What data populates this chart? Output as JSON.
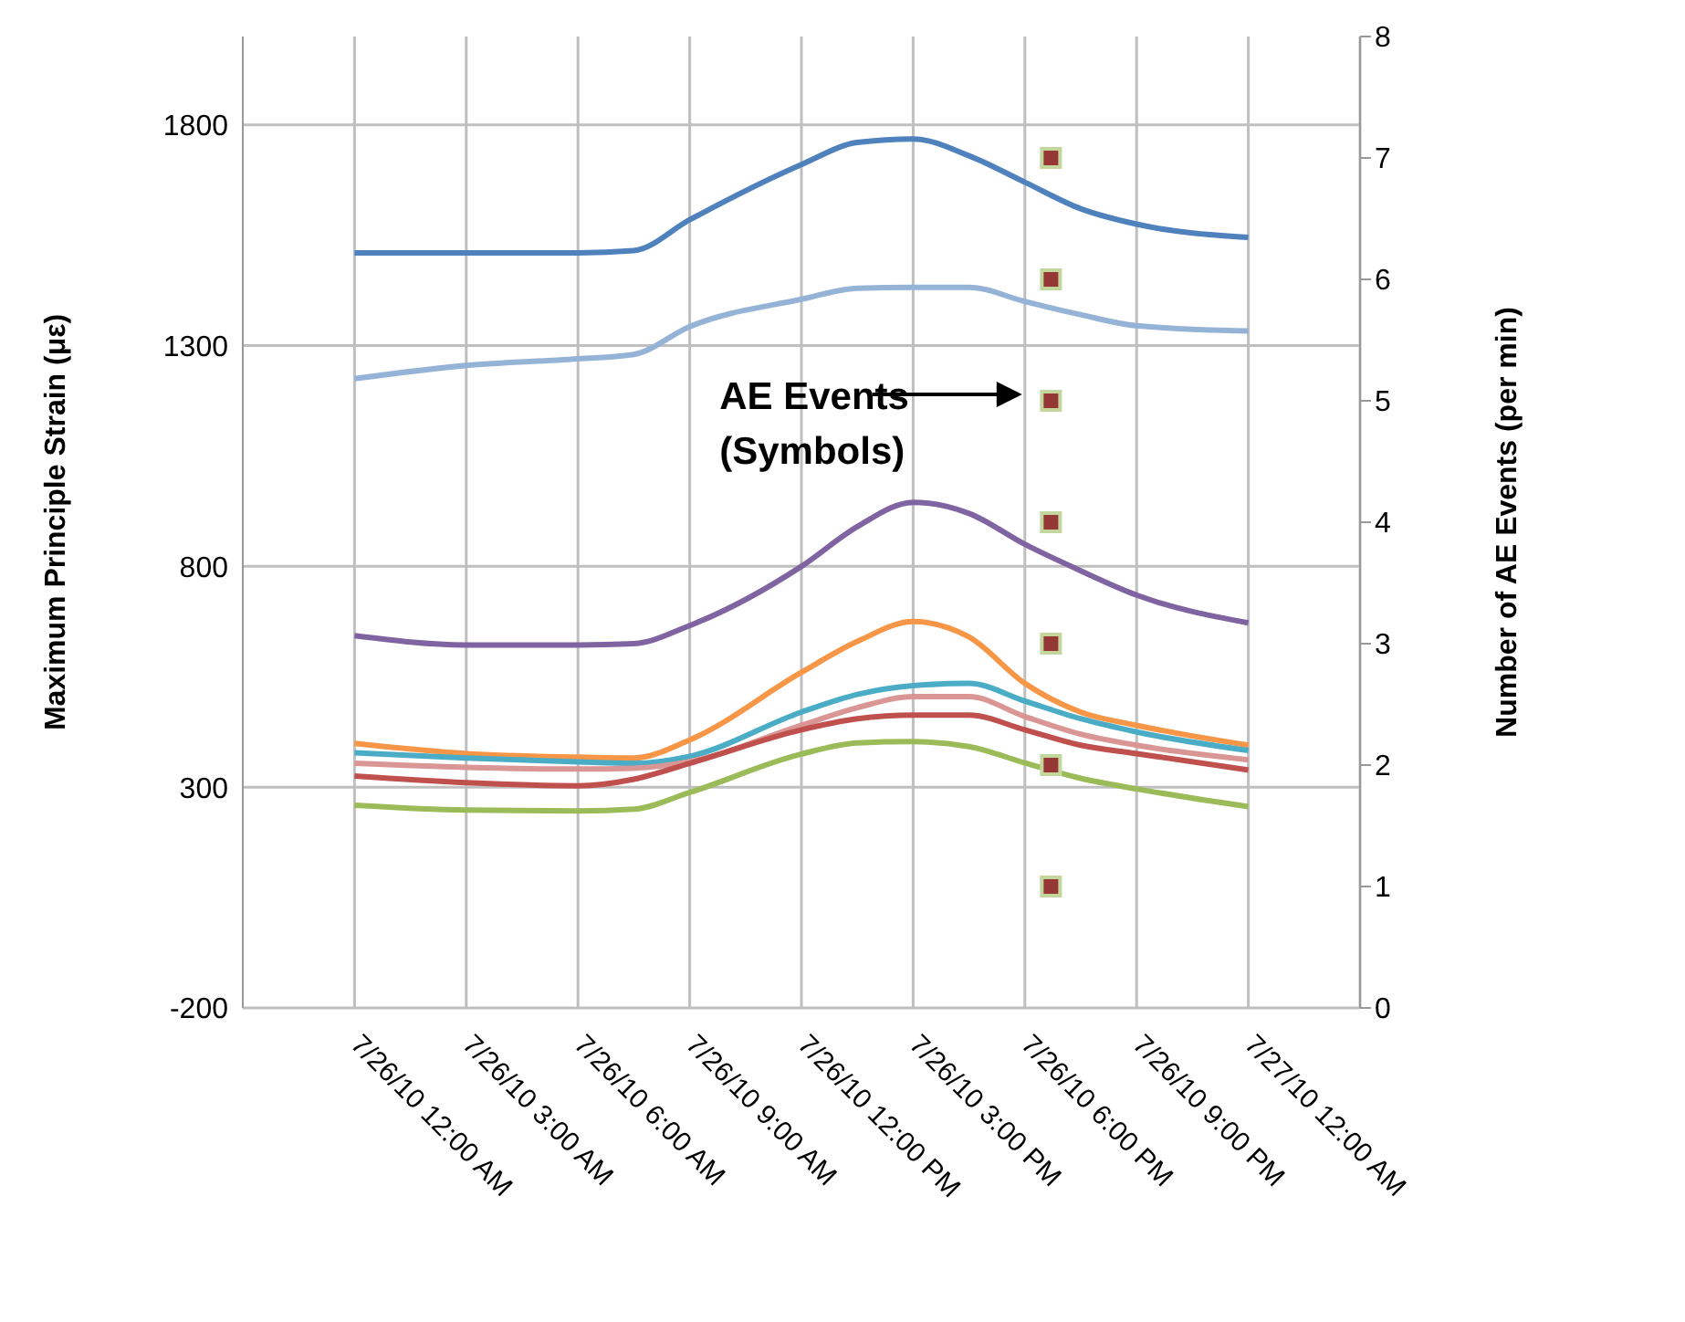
{
  "chart_data": {
    "type": "line",
    "ylabel": "Maximum Principle Strain (με)",
    "y2label": "Number of AE Events (per min)",
    "annotations": [
      "AE Events\n(Symbols)"
    ],
    "x": [
      "--07-26T00:00",
      "--07-26T03:00",
      "--07-26T06:00",
      "--07-26T07:30",
      "--07-26T09:00",
      "--07-26T12:00",
      "--07-26T13:30",
      "--07-26T15:00",
      "--07-26T16:30",
      "--07-26T18:00",
      "--07-26T19:30",
      "--07-26T21:00",
      "--07-27T00:00"
    ],
    "xlim": [
      "--07-25T21:00",
      "--07-27T03:00"
    ],
    "xticks": [
      {
        "value": "--07-26T00:00",
        "label": "7/26/10 12:00 AM"
      },
      {
        "value": "--07-26T03:00",
        "label": "7/26/10 3:00 AM"
      },
      {
        "value": "--07-26T06:00",
        "label": "7/26/10 6:00 AM"
      },
      {
        "value": "--07-26T09:00",
        "label": "7/26/10 9:00 AM"
      },
      {
        "value": "--07-26T12:00",
        "label": "7/26/10 12:00 PM"
      },
      {
        "value": "--07-26T15:00",
        "label": "7/26/10 3:00 PM"
      },
      {
        "value": "--07-26T18:00",
        "label": "7/26/10 6:00 PM"
      },
      {
        "value": "--07-26T21:00",
        "label": "7/26/10 9:00 PM"
      },
      {
        "value": "--07-27T00:00",
        "label": "7/27/10 12:00 AM"
      }
    ],
    "ylim": [
      -200,
      2000
    ],
    "yticks": [
      -200,
      300,
      800,
      1300,
      1800
    ],
    "y2lim": [
      0,
      8
    ],
    "y2ticks": [
      0,
      1,
      2,
      3,
      4,
      5,
      6,
      7,
      8
    ],
    "grid": true,
    "marker": "none",
    "line_style": "solid",
    "series": [
      {
        "color": "#4f81bd",
        "values": [
          1510,
          1510,
          1510,
          1515,
          1585,
          1710,
          1760,
          1768,
          1730,
          1670,
          1610,
          1575,
          1545
        ]
      },
      {
        "color": "#95b3d7",
        "values": [
          1225,
          1255,
          1270,
          1280,
          1343,
          1405,
          1430,
          1432,
          1432,
          1400,
          1370,
          1345,
          1333
        ]
      },
      {
        "color": "#8064a2",
        "values": [
          643,
          622,
          622,
          625,
          666,
          800,
          890,
          945,
          920,
          850,
          790,
          735,
          672
        ]
      },
      {
        "color": "#f79646",
        "values": [
          399,
          376,
          368,
          366,
          407,
          560,
          630,
          675,
          640,
          535,
          470,
          440,
          395
        ]
      },
      {
        "color": "#4bacc6",
        "values": [
          378,
          366,
          357,
          354,
          370,
          470,
          510,
          530,
          535,
          495,
          455,
          425,
          383
        ]
      },
      {
        "color": "#d99694",
        "values": [
          354,
          345,
          341,
          343,
          358,
          440,
          480,
          505,
          505,
          460,
          420,
          395,
          362
        ]
      },
      {
        "color": "#c0504d",
        "values": [
          325,
          310,
          303,
          318,
          354,
          430,
          455,
          463,
          463,
          430,
          395,
          376,
          339
        ]
      },
      {
        "color": "#9bbb59",
        "values": [
          259,
          248,
          246,
          250,
          288,
          375,
          400,
          403,
          392,
          355,
          320,
          296,
          256
        ]
      },
      {
        "type": "scatter",
        "axis": "y2",
        "marker": "square",
        "color": "#953735",
        "x": [
          "--07-26T18:42",
          "--07-26T18:42",
          "--07-26T18:42",
          "--07-26T18:42",
          "--07-26T18:42",
          "--07-26T18:42",
          "--07-26T18:42"
        ],
        "values": [
          1,
          2,
          3,
          4,
          5,
          6,
          7
        ]
      }
    ]
  }
}
